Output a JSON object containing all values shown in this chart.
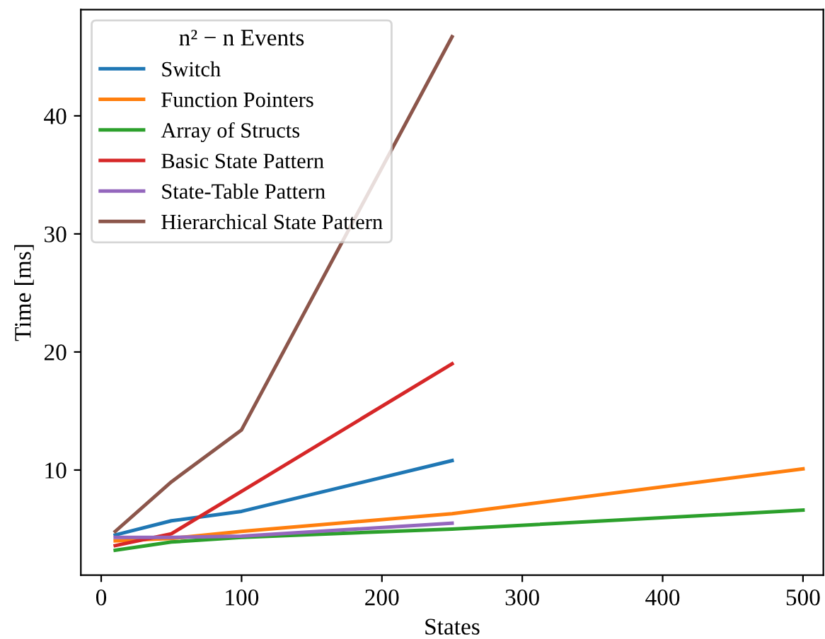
{
  "chart_data": {
    "type": "line",
    "xlabel": "States",
    "ylabel": "Time [ms]",
    "legend_title": "n² − n Events",
    "legend": "top left",
    "grid": false,
    "xlim": [
      -14.5,
      514.5
    ],
    "ylim": [
      1.1,
      49.0
    ],
    "xticks": [
      0,
      100,
      200,
      300,
      400,
      500
    ],
    "yticks": [
      10,
      20,
      30,
      40
    ],
    "series": [
      {
        "name": "Switch",
        "color": "#1f77b4",
        "x": [
          10,
          50,
          100,
          250
        ],
        "values": [
          4.5,
          5.7,
          6.5,
          10.8
        ]
      },
      {
        "name": "Function Pointers",
        "color": "#ff7f0e",
        "x": [
          10,
          50,
          100,
          250,
          500
        ],
        "values": [
          4.0,
          4.2,
          4.8,
          6.3,
          10.1
        ]
      },
      {
        "name": "Array of Structs",
        "color": "#2ca02c",
        "x": [
          10,
          50,
          100,
          250,
          500
        ],
        "values": [
          3.2,
          3.9,
          4.3,
          5.0,
          6.6
        ]
      },
      {
        "name": "Basic State Pattern",
        "color": "#d62728",
        "x": [
          10,
          50,
          100,
          250
        ],
        "values": [
          3.6,
          4.6,
          8.2,
          19.0
        ]
      },
      {
        "name": "State-Table Pattern",
        "color": "#9467bd",
        "x": [
          10,
          50,
          100,
          250
        ],
        "values": [
          4.3,
          4.3,
          4.4,
          5.5
        ]
      },
      {
        "name": "Hierarchical State Pattern",
        "color": "#8c564b",
        "x": [
          10,
          50,
          100,
          250
        ],
        "values": [
          4.8,
          9.0,
          13.4,
          46.7
        ]
      }
    ]
  }
}
